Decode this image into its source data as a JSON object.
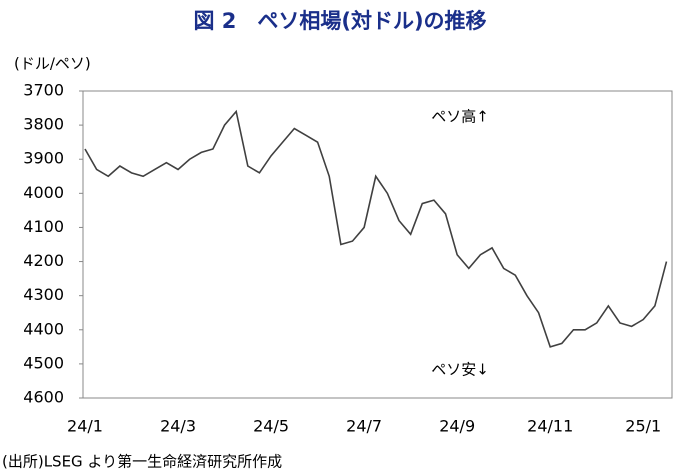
{
  "chart_data": {
    "type": "line",
    "title": "図 2　ペソ相場(対ドル)の推移",
    "y_label": "(ドル/ペソ)",
    "source": "(出所)LSEG より第一生命経済研究所作成",
    "annotations": [
      "ペソ高↑",
      "ペソ安↓"
    ],
    "categories": [
      "24/1",
      null,
      null,
      null,
      null,
      null,
      null,
      null,
      "24/3",
      null,
      null,
      null,
      null,
      null,
      null,
      null,
      "24/5",
      null,
      null,
      null,
      null,
      null,
      null,
      null,
      "24/7",
      null,
      null,
      null,
      null,
      null,
      null,
      null,
      "24/9",
      null,
      null,
      null,
      null,
      null,
      null,
      null,
      "24/11",
      null,
      null,
      null,
      null,
      null,
      null,
      null,
      "25/1",
      null,
      null
    ],
    "series": [
      {
        "name": "ペソ相場(対ドル)",
        "color": "#404040",
        "values": [
          3870,
          3930,
          3950,
          3920,
          3940,
          3950,
          3930,
          3910,
          3930,
          3900,
          3880,
          3870,
          3800,
          3760,
          3920,
          3940,
          3890,
          3850,
          3810,
          3830,
          3850,
          3950,
          4150,
          4140,
          4100,
          3950,
          4000,
          4080,
          4120,
          4030,
          4020,
          4060,
          4180,
          4220,
          4180,
          4160,
          4220,
          4240,
          4300,
          4350,
          4450,
          4440,
          4400,
          4400,
          4380,
          4330,
          4380,
          4390,
          4370,
          4330,
          4200
        ]
      }
    ],
    "ylim": [
      3700,
      4600
    ],
    "y_inverted": true,
    "yticks": [
      3700,
      3800,
      3900,
      4000,
      4100,
      4200,
      4300,
      4400,
      4500,
      4600
    ],
    "grid": false
  }
}
